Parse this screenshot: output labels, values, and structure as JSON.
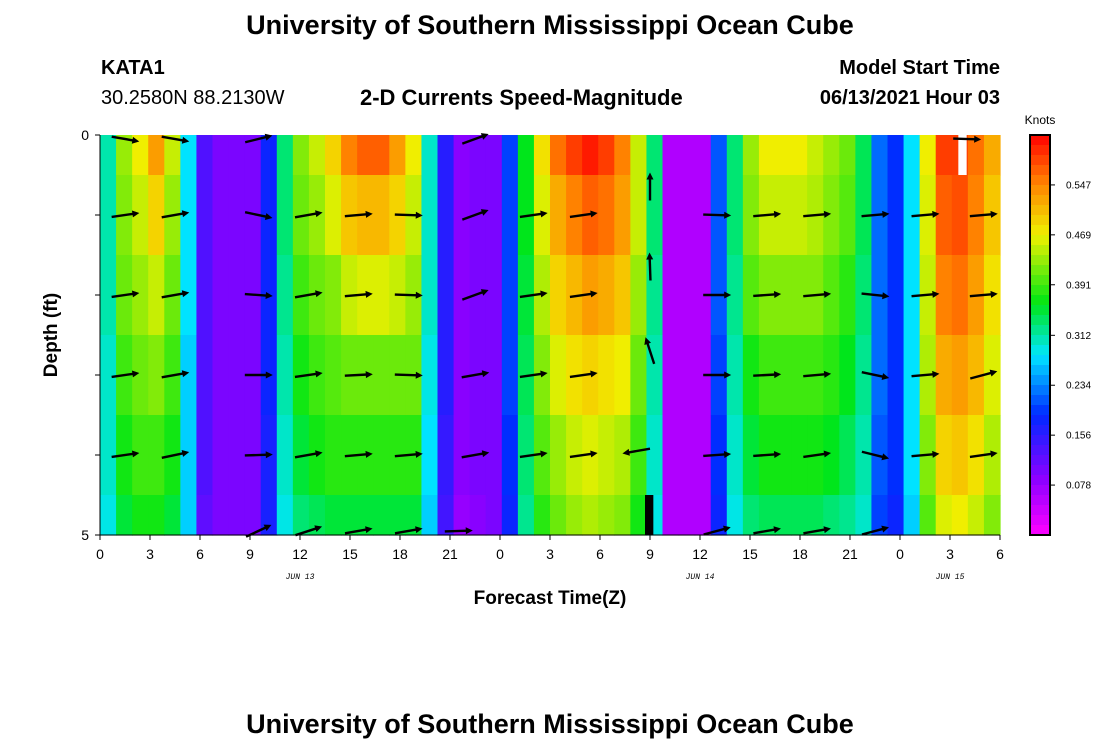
{
  "page": {
    "title_top": "University of Southern Mississippi Ocean Cube",
    "title_bottom": "University of Southern Mississippi Ocean Cube",
    "station": "KATA1",
    "coords": "30.2580N  88.2130W",
    "subtitle": "2-D Currents Speed-Magnitude",
    "model_label": "Model Start Time",
    "model_time": "06/13/2021 Hour 03"
  },
  "chart_data": {
    "type": "heatmap",
    "title": "2-D Currents Speed-Magnitude",
    "xlabel": "Forecast Time(Z)",
    "ylabel": "Depth (ft)",
    "colorbar_label": "Knots",
    "xlim": [
      0,
      54
    ],
    "ylim": [
      5,
      0
    ],
    "x_ticks": [
      {
        "t": 0,
        "label": "0"
      },
      {
        "t": 3,
        "label": "3"
      },
      {
        "t": 6,
        "label": "6"
      },
      {
        "t": 9,
        "label": "9"
      },
      {
        "t": 12,
        "label": "12"
      },
      {
        "t": 15,
        "label": "15"
      },
      {
        "t": 18,
        "label": "18"
      },
      {
        "t": 21,
        "label": "21"
      },
      {
        "t": 24,
        "label": "0"
      },
      {
        "t": 27,
        "label": "3"
      },
      {
        "t": 30,
        "label": "6"
      },
      {
        "t": 33,
        "label": "9"
      },
      {
        "t": 36,
        "label": "12"
      },
      {
        "t": 39,
        "label": "15"
      },
      {
        "t": 42,
        "label": "18"
      },
      {
        "t": 45,
        "label": "21"
      },
      {
        "t": 48,
        "label": "0"
      },
      {
        "t": 51,
        "label": "3"
      },
      {
        "t": 54,
        "label": "6"
      }
    ],
    "day_labels": [
      {
        "t": 12,
        "label": "JUN 13"
      },
      {
        "t": 36,
        "label": "JUN 14"
      },
      {
        "t": 51,
        "label": "JUN 15"
      }
    ],
    "y_ticks": [
      {
        "d": 0,
        "label": "0"
      },
      {
        "d": 1
      },
      {
        "d": 2
      },
      {
        "d": 3
      },
      {
        "d": 4
      },
      {
        "d": 5,
        "label": "5"
      }
    ],
    "depth_levels": [
      0,
      0.5,
      1.5,
      2.5,
      3.5,
      4.5
    ],
    "colorbar": {
      "min": 0,
      "max": 0.625,
      "tick_values": [
        0.078,
        0.156,
        0.234,
        0.312,
        0.391,
        0.469,
        0.547
      ],
      "tick_labels": [
        "0.078",
        "0.156",
        "0.234",
        "0.312",
        "0.391",
        "0.469",
        "0.547"
      ]
    },
    "speed_series": [
      {
        "depth": "0-0.5",
        "values": [
          0.31,
          0.43,
          0.47,
          0.53,
          0.45,
          0.28,
          0.13,
          0.1,
          0.1,
          0.1,
          0.18,
          0.33,
          0.42,
          0.45,
          0.49,
          0.55,
          0.57,
          0.57,
          0.53,
          0.47,
          0.3,
          0.16,
          0.09,
          0.1,
          0.1,
          0.2,
          0.36,
          0.48,
          0.56,
          0.59,
          0.61,
          0.59,
          0.55,
          0.45,
          0.33,
          0.06,
          0.06,
          0.06,
          0.21,
          0.33,
          0.43,
          0.47,
          0.47,
          0.47,
          0.45,
          0.43,
          0.41,
          0.34,
          0.22,
          0.19,
          0.28,
          0.47,
          0.59,
          0.59,
          0.56,
          0.52
        ]
      },
      {
        "depth": "0.5-1.5",
        "values": [
          0.31,
          0.42,
          0.45,
          0.49,
          0.43,
          0.28,
          0.13,
          0.1,
          0.1,
          0.1,
          0.18,
          0.33,
          0.41,
          0.43,
          0.46,
          0.5,
          0.51,
          0.51,
          0.49,
          0.45,
          0.3,
          0.16,
          0.09,
          0.1,
          0.1,
          0.2,
          0.36,
          0.46,
          0.52,
          0.55,
          0.57,
          0.56,
          0.53,
          0.45,
          0.33,
          0.06,
          0.06,
          0.06,
          0.21,
          0.33,
          0.42,
          0.45,
          0.45,
          0.45,
          0.44,
          0.42,
          0.4,
          0.34,
          0.22,
          0.19,
          0.28,
          0.46,
          0.57,
          0.58,
          0.55,
          0.5
        ]
      },
      {
        "depth": "1.5-2.5",
        "values": [
          0.31,
          0.41,
          0.43,
          0.45,
          0.41,
          0.28,
          0.13,
          0.1,
          0.1,
          0.1,
          0.18,
          0.32,
          0.39,
          0.41,
          0.42,
          0.45,
          0.46,
          0.46,
          0.45,
          0.43,
          0.3,
          0.16,
          0.09,
          0.1,
          0.1,
          0.2,
          0.35,
          0.44,
          0.49,
          0.51,
          0.53,
          0.52,
          0.5,
          0.43,
          0.32,
          0.06,
          0.06,
          0.06,
          0.21,
          0.32,
          0.4,
          0.42,
          0.42,
          0.42,
          0.42,
          0.4,
          0.38,
          0.33,
          0.22,
          0.19,
          0.28,
          0.45,
          0.55,
          0.56,
          0.53,
          0.48
        ]
      },
      {
        "depth": "2.5-3.5",
        "values": [
          0.3,
          0.39,
          0.41,
          0.42,
          0.39,
          0.27,
          0.13,
          0.1,
          0.1,
          0.1,
          0.18,
          0.31,
          0.37,
          0.39,
          0.4,
          0.41,
          0.41,
          0.41,
          0.41,
          0.41,
          0.29,
          0.16,
          0.09,
          0.1,
          0.1,
          0.2,
          0.34,
          0.42,
          0.46,
          0.48,
          0.49,
          0.48,
          0.47,
          0.41,
          0.31,
          0.06,
          0.06,
          0.06,
          0.2,
          0.31,
          0.37,
          0.39,
          0.39,
          0.39,
          0.39,
          0.38,
          0.36,
          0.32,
          0.22,
          0.19,
          0.28,
          0.44,
          0.52,
          0.53,
          0.51,
          0.46
        ]
      },
      {
        "depth": "3.5-4.5",
        "values": [
          0.3,
          0.37,
          0.39,
          0.39,
          0.37,
          0.27,
          0.13,
          0.1,
          0.1,
          0.1,
          0.17,
          0.3,
          0.35,
          0.37,
          0.38,
          0.38,
          0.38,
          0.38,
          0.38,
          0.38,
          0.28,
          0.15,
          0.09,
          0.1,
          0.1,
          0.19,
          0.33,
          0.4,
          0.43,
          0.45,
          0.46,
          0.45,
          0.44,
          0.39,
          0.3,
          0.06,
          0.06,
          0.06,
          0.19,
          0.3,
          0.35,
          0.37,
          0.37,
          0.37,
          0.37,
          0.36,
          0.34,
          0.31,
          0.21,
          0.19,
          0.28,
          0.42,
          0.49,
          0.5,
          0.48,
          0.44
        ]
      },
      {
        "depth": "4.5-5",
        "values": [
          0.29,
          0.35,
          0.37,
          0.37,
          0.35,
          0.27,
          0.12,
          0.1,
          0.1,
          0.1,
          0.17,
          0.29,
          0.33,
          0.34,
          0.35,
          0.35,
          0.35,
          0.35,
          0.35,
          0.35,
          0.27,
          0.14,
          0.08,
          0.09,
          0.1,
          0.18,
          0.32,
          0.38,
          0.41,
          0.43,
          0.44,
          0.43,
          0.42,
          0.37,
          0.29,
          0.06,
          0.06,
          0.06,
          0.18,
          0.29,
          0.33,
          0.34,
          0.34,
          0.34,
          0.34,
          0.33,
          0.32,
          0.3,
          0.2,
          0.18,
          0.27,
          0.4,
          0.46,
          0.47,
          0.45,
          0.42
        ]
      }
    ],
    "vectors": [
      {
        "t": 1.5,
        "d": 0.05,
        "a": 10
      },
      {
        "t": 4.5,
        "d": 0.05,
        "a": 10
      },
      {
        "t": 9.5,
        "d": 0.05,
        "a": -14
      },
      {
        "t": 22.5,
        "d": 0.05,
        "a": -20
      },
      {
        "t": 52,
        "d": 0.05,
        "a": 2
      },
      {
        "t": 1.5,
        "d": 1.0,
        "a": -8
      },
      {
        "t": 4.5,
        "d": 1.0,
        "a": -10
      },
      {
        "t": 9.5,
        "d": 1.0,
        "a": 12
      },
      {
        "t": 12.5,
        "d": 1.0,
        "a": -10
      },
      {
        "t": 15.5,
        "d": 1.0,
        "a": -5
      },
      {
        "t": 18.5,
        "d": 1.0,
        "a": 2
      },
      {
        "t": 22.5,
        "d": 1.0,
        "a": -20
      },
      {
        "t": 26,
        "d": 1.0,
        "a": -8
      },
      {
        "t": 29,
        "d": 1.0,
        "a": -8
      },
      {
        "t": 33,
        "d": 0.65,
        "a": -90
      },
      {
        "t": 37,
        "d": 1.0,
        "a": 2
      },
      {
        "t": 40,
        "d": 1.0,
        "a": -5
      },
      {
        "t": 43,
        "d": 1.0,
        "a": -5
      },
      {
        "t": 46.5,
        "d": 1.0,
        "a": -5
      },
      {
        "t": 49.5,
        "d": 1.0,
        "a": -5
      },
      {
        "t": 53,
        "d": 1.0,
        "a": -5
      },
      {
        "t": 1.5,
        "d": 2.0,
        "a": -8
      },
      {
        "t": 4.5,
        "d": 2.0,
        "a": -10
      },
      {
        "t": 9.5,
        "d": 2.0,
        "a": 4
      },
      {
        "t": 12.5,
        "d": 2.0,
        "a": -10
      },
      {
        "t": 15.5,
        "d": 2.0,
        "a": -5
      },
      {
        "t": 18.5,
        "d": 2.0,
        "a": 2
      },
      {
        "t": 22.5,
        "d": 2.0,
        "a": -20
      },
      {
        "t": 26,
        "d": 2.0,
        "a": -8
      },
      {
        "t": 29,
        "d": 2.0,
        "a": -8
      },
      {
        "t": 33,
        "d": 1.65,
        "a": -92
      },
      {
        "t": 37,
        "d": 2.0,
        "a": 0
      },
      {
        "t": 40,
        "d": 2.0,
        "a": -4
      },
      {
        "t": 43,
        "d": 2.0,
        "a": -5
      },
      {
        "t": 46.5,
        "d": 2.0,
        "a": 6
      },
      {
        "t": 49.5,
        "d": 2.0,
        "a": -5
      },
      {
        "t": 53,
        "d": 2.0,
        "a": -5
      },
      {
        "t": 1.5,
        "d": 3.0,
        "a": -8
      },
      {
        "t": 4.5,
        "d": 3.0,
        "a": -10
      },
      {
        "t": 9.5,
        "d": 3.0,
        "a": 0
      },
      {
        "t": 12.5,
        "d": 3.0,
        "a": -8
      },
      {
        "t": 15.5,
        "d": 3.0,
        "a": -3
      },
      {
        "t": 18.5,
        "d": 3.0,
        "a": 2
      },
      {
        "t": 22.5,
        "d": 3.0,
        "a": -10
      },
      {
        "t": 26,
        "d": 3.0,
        "a": -8
      },
      {
        "t": 29,
        "d": 3.0,
        "a": -8
      },
      {
        "t": 33,
        "d": 2.7,
        "a": -108
      },
      {
        "t": 37,
        "d": 3.0,
        "a": 0
      },
      {
        "t": 40,
        "d": 3.0,
        "a": -3
      },
      {
        "t": 43,
        "d": 3.0,
        "a": -5
      },
      {
        "t": 46.5,
        "d": 3.0,
        "a": 12
      },
      {
        "t": 49.5,
        "d": 3.0,
        "a": -5
      },
      {
        "t": 53,
        "d": 3.0,
        "a": -15
      },
      {
        "t": 1.5,
        "d": 4.0,
        "a": -8
      },
      {
        "t": 4.5,
        "d": 4.0,
        "a": -12
      },
      {
        "t": 9.5,
        "d": 4.0,
        "a": -2
      },
      {
        "t": 12.5,
        "d": 4.0,
        "a": -10
      },
      {
        "t": 15.5,
        "d": 4.0,
        "a": -5
      },
      {
        "t": 18.5,
        "d": 4.0,
        "a": -5
      },
      {
        "t": 22.5,
        "d": 4.0,
        "a": -10
      },
      {
        "t": 26,
        "d": 4.0,
        "a": -8
      },
      {
        "t": 29,
        "d": 4.0,
        "a": -8
      },
      {
        "t": 32.2,
        "d": 3.95,
        "a": 170
      },
      {
        "t": 37,
        "d": 4.0,
        "a": -4
      },
      {
        "t": 40,
        "d": 4.0,
        "a": -4
      },
      {
        "t": 43,
        "d": 4.0,
        "a": -8
      },
      {
        "t": 46.5,
        "d": 4.0,
        "a": 14
      },
      {
        "t": 49.5,
        "d": 4.0,
        "a": -5
      },
      {
        "t": 53,
        "d": 4.0,
        "a": -8
      },
      {
        "t": 9.5,
        "d": 4.95,
        "a": -25
      },
      {
        "t": 12.5,
        "d": 4.95,
        "a": -18
      },
      {
        "t": 15.5,
        "d": 4.95,
        "a": -10
      },
      {
        "t": 18.5,
        "d": 4.95,
        "a": -10
      },
      {
        "t": 21.5,
        "d": 4.95,
        "a": -2
      },
      {
        "t": 37,
        "d": 4.95,
        "a": -15
      },
      {
        "t": 40,
        "d": 4.95,
        "a": -10
      },
      {
        "t": 43,
        "d": 4.95,
        "a": -10
      },
      {
        "t": 46.5,
        "d": 4.95,
        "a": -15
      }
    ],
    "missing_data": [
      {
        "t_start": 51.5,
        "t_end": 52.0,
        "d_start": 0,
        "d_end": 0.5,
        "fill": "#ffffff"
      },
      {
        "t_start": 32.7,
        "t_end": 33.2,
        "d_start": 4.5,
        "d_end": 5,
        "fill": "#000000"
      }
    ]
  }
}
